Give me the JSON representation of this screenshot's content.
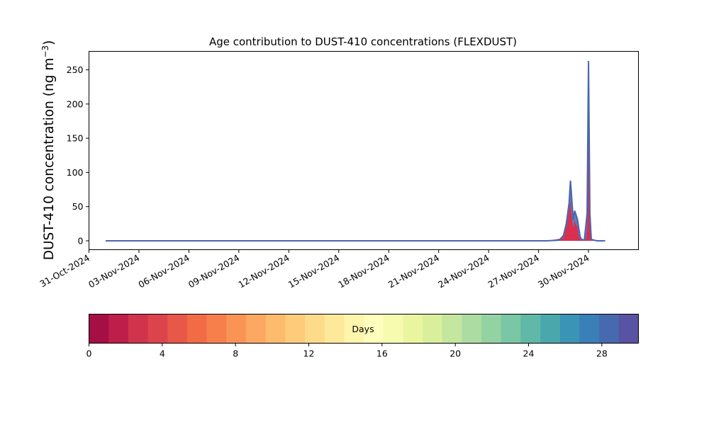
{
  "chart_data": {
    "type": "area",
    "title": "Age contribution to DUST-410 concentrations (FLEXDUST)",
    "ylabel_main": "DUST-410 concentration (ng m",
    "ylabel_sup": "−3",
    "ylabel_close": ")",
    "xlabel": "",
    "x_start": "2024-11-01",
    "x_end": "2024-12-01",
    "xlim": [
      "2024-10-31T00:00",
      "2024-12-03T00:00"
    ],
    "ylim": [
      -13,
      277
    ],
    "y_ticks": [
      0,
      50,
      100,
      150,
      200,
      250
    ],
    "x_ticks": [
      {
        "date": "2024-10-31",
        "label": "31-Oct-2024"
      },
      {
        "date": "2024-11-03",
        "label": "03-Nov-2024"
      },
      {
        "date": "2024-11-06",
        "label": "06-Nov-2024"
      },
      {
        "date": "2024-11-09",
        "label": "09-Nov-2024"
      },
      {
        "date": "2024-11-12",
        "label": "12-Nov-2024"
      },
      {
        "date": "2024-11-15",
        "label": "15-Nov-2024"
      },
      {
        "date": "2024-11-18",
        "label": "18-Nov-2024"
      },
      {
        "date": "2024-11-21",
        "label": "21-Nov-2024"
      },
      {
        "date": "2024-11-24",
        "label": "24-Nov-2024"
      },
      {
        "date": "2024-11-27",
        "label": "27-Nov-2024"
      },
      {
        "date": "2024-11-30",
        "label": "30-Nov-2024"
      }
    ],
    "total_series": [
      {
        "x": "2024-11-01T00:00",
        "y": 0
      },
      {
        "x": "2024-11-27T12:00",
        "y": 0
      },
      {
        "x": "2024-11-28T06:00",
        "y": 1
      },
      {
        "x": "2024-11-28T12:00",
        "y": 8
      },
      {
        "x": "2024-11-28T16:00",
        "y": 25
      },
      {
        "x": "2024-11-28T20:00",
        "y": 55
      },
      {
        "x": "2024-11-28T22:00",
        "y": 88
      },
      {
        "x": "2024-11-29T00:00",
        "y": 60
      },
      {
        "x": "2024-11-29T02:00",
        "y": 30
      },
      {
        "x": "2024-11-29T04:00",
        "y": 44
      },
      {
        "x": "2024-11-29T06:00",
        "y": 38
      },
      {
        "x": "2024-11-29T08:00",
        "y": 32
      },
      {
        "x": "2024-11-29T10:00",
        "y": 18
      },
      {
        "x": "2024-11-29T12:00",
        "y": 6
      },
      {
        "x": "2024-11-29T14:00",
        "y": 2
      },
      {
        "x": "2024-11-29T18:00",
        "y": 1
      },
      {
        "x": "2024-11-29T22:00",
        "y": 40
      },
      {
        "x": "2024-11-30T00:00",
        "y": 263
      },
      {
        "x": "2024-11-30T02:00",
        "y": 40
      },
      {
        "x": "2024-11-30T04:00",
        "y": 2
      },
      {
        "x": "2024-11-30T12:00",
        "y": 0
      },
      {
        "x": "2024-12-01T00:00",
        "y": 0
      }
    ],
    "young_series": [
      {
        "x": "2024-11-01T00:00",
        "y": 0
      },
      {
        "x": "2024-11-27T12:00",
        "y": 0
      },
      {
        "x": "2024-11-28T12:00",
        "y": 4
      },
      {
        "x": "2024-11-28T18:00",
        "y": 30
      },
      {
        "x": "2024-11-28T22:00",
        "y": 58
      },
      {
        "x": "2024-11-29T00:00",
        "y": 35
      },
      {
        "x": "2024-11-29T02:00",
        "y": 18
      },
      {
        "x": "2024-11-29T04:00",
        "y": 30
      },
      {
        "x": "2024-11-29T06:00",
        "y": 24
      },
      {
        "x": "2024-11-29T08:00",
        "y": 20
      },
      {
        "x": "2024-11-29T10:00",
        "y": 8
      },
      {
        "x": "2024-11-29T12:00",
        "y": 2
      },
      {
        "x": "2024-11-29T20:00",
        "y": 1
      },
      {
        "x": "2024-11-29T22:00",
        "y": 20
      },
      {
        "x": "2024-11-30T00:00",
        "y": 160
      },
      {
        "x": "2024-11-30T02:00",
        "y": 20
      },
      {
        "x": "2024-11-30T04:00",
        "y": 0
      },
      {
        "x": "2024-12-01T00:00",
        "y": 0
      }
    ],
    "colorbar": {
      "label": "Days",
      "min": 0,
      "max": 30,
      "ticks": [
        0,
        4,
        8,
        12,
        16,
        20,
        24,
        28
      ],
      "colors": [
        "#a50f44",
        "#bd1e4a",
        "#d0334c",
        "#dc444c",
        "#e75849",
        "#f16b45",
        "#f67f4c",
        "#f99456",
        "#fca862",
        "#fdbb6d",
        "#fecb7b",
        "#fedb8b",
        "#fee89a",
        "#fff5ac",
        "#fefebd",
        "#f6fbb0",
        "#e9f69f",
        "#d9ef9b",
        "#c4e69e",
        "#acdca1",
        "#93d2a3",
        "#79c7a4",
        "#60b8a7",
        "#4aa8ad",
        "#3a94b6",
        "#3b7fb9",
        "#4769af",
        "#5a52a2"
      ]
    },
    "total_color": "#4a66ad",
    "young_color": "#d8304e",
    "grid": false,
    "legend": "none"
  }
}
